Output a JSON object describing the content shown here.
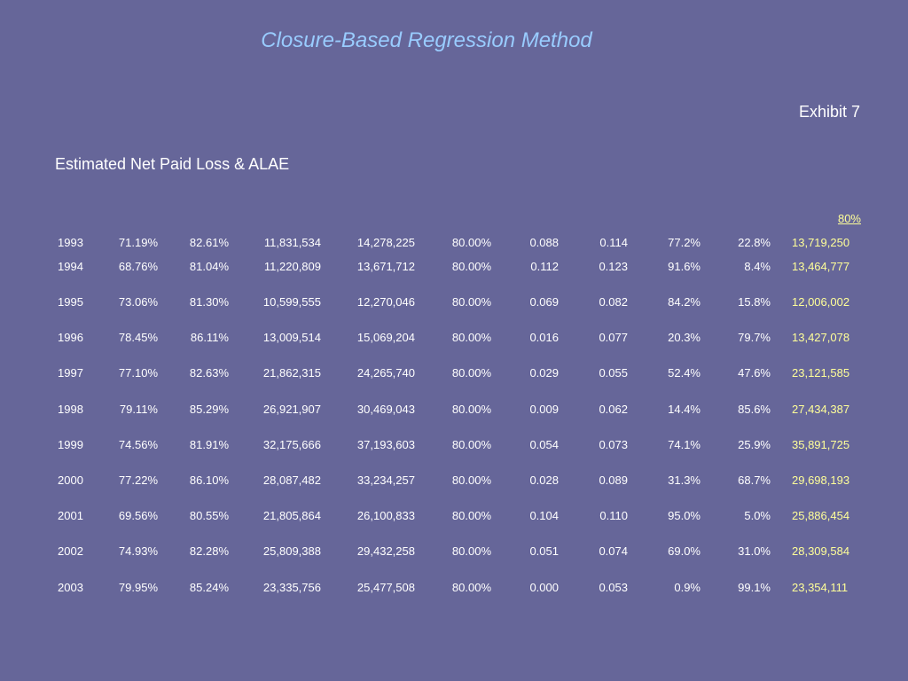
{
  "title": "Closure-Based Regression Method",
  "exhibit": "Exhibit 7",
  "subtitle": "Estimated Net Paid Loss & ALAE",
  "column_header": "80%",
  "highlight_color": "#ffff99",
  "rows": [
    [
      "1993",
      "71.19%",
      "82.61%",
      "11,831,534",
      "14,278,225",
      "80.00%",
      "0.088",
      "0.114",
      "77.2%",
      "22.8%",
      "13,719,250"
    ],
    [
      "1994",
      "68.76%",
      "81.04%",
      "11,220,809",
      "13,671,712",
      "80.00%",
      "0.112",
      "0.123",
      "91.6%",
      "8.4%",
      "13,464,777"
    ],
    [
      "1995",
      "73.06%",
      "81.30%",
      "10,599,555",
      "12,270,046",
      "80.00%",
      "0.069",
      "0.082",
      "84.2%",
      "15.8%",
      "12,006,002"
    ],
    [
      "1996",
      "78.45%",
      "86.11%",
      "13,009,514",
      "15,069,204",
      "80.00%",
      "0.016",
      "0.077",
      "20.3%",
      "79.7%",
      "13,427,078"
    ],
    [
      "1997",
      "77.10%",
      "82.63%",
      "21,862,315",
      "24,265,740",
      "80.00%",
      "0.029",
      "0.055",
      "52.4%",
      "47.6%",
      "23,121,585"
    ],
    [
      "1998",
      "79.11%",
      "85.29%",
      "26,921,907",
      "30,469,043",
      "80.00%",
      "0.009",
      "0.062",
      "14.4%",
      "85.6%",
      "27,434,387"
    ],
    [
      "1999",
      "74.56%",
      "81.91%",
      "32,175,666",
      "37,193,603",
      "80.00%",
      "0.054",
      "0.073",
      "74.1%",
      "25.9%",
      "35,891,725"
    ],
    [
      "2000",
      "77.22%",
      "86.10%",
      "28,087,482",
      "33,234,257",
      "80.00%",
      "0.028",
      "0.089",
      "31.3%",
      "68.7%",
      "29,698,193"
    ],
    [
      "2001",
      "69.56%",
      "80.55%",
      "21,805,864",
      "26,100,833",
      "80.00%",
      "0.104",
      "0.110",
      "95.0%",
      "5.0%",
      "25,886,454"
    ],
    [
      "2002",
      "74.93%",
      "82.28%",
      "25,809,388",
      "29,432,258",
      "80.00%",
      "0.051",
      "0.074",
      "69.0%",
      "31.0%",
      "28,309,584"
    ],
    [
      "2003",
      "79.95%",
      "85.24%",
      "23,335,756",
      "25,477,508",
      "80.00%",
      "0.000",
      "0.053",
      "0.9%",
      "99.1%",
      "23,354,111"
    ]
  ]
}
